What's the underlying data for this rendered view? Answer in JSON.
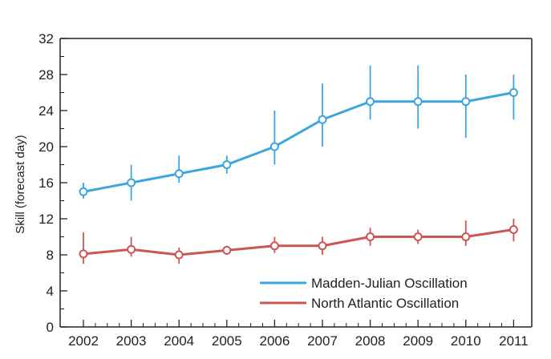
{
  "colors": {
    "mjo": "#3aa6dc",
    "nao": "#cc5555",
    "axis": "#222222",
    "background": "#ffffff"
  },
  "chart_data": {
    "type": "line",
    "title": "",
    "xlabel": "",
    "ylabel": "Skill (forecast day)",
    "x": [
      "2002",
      "2003",
      "2004",
      "2005",
      "2006",
      "2007",
      "2008",
      "2009",
      "2010",
      "2011"
    ],
    "ylim": [
      0,
      32
    ],
    "yticks": [
      0,
      4,
      8,
      12,
      16,
      20,
      24,
      28,
      32
    ],
    "grid": false,
    "legend_position": "bottom-right",
    "marker": "open-circle",
    "error_bars": true,
    "series": [
      {
        "name": "Madden-Julian Oscillation",
        "color": "#3aa6dc",
        "values": [
          15,
          16,
          17,
          18,
          20,
          23,
          25,
          25,
          25,
          26
        ],
        "err_low": [
          14.2,
          14.0,
          16.0,
          17.0,
          18.0,
          20.0,
          23.0,
          22.0,
          21.0,
          23.0
        ],
        "err_high": [
          16.0,
          18.0,
          19.0,
          19.0,
          24.0,
          27.0,
          29.0,
          29.0,
          28.0,
          28.0
        ]
      },
      {
        "name": "North Atlantic Oscillation",
        "color": "#cc5555",
        "values": [
          8.1,
          8.6,
          8.0,
          8.5,
          9.0,
          9.0,
          10.0,
          10.0,
          10.0,
          10.8
        ],
        "err_low": [
          7.0,
          7.8,
          7.0,
          8.0,
          8.2,
          8.0,
          9.0,
          9.2,
          9.0,
          9.5
        ],
        "err_high": [
          10.5,
          10.0,
          8.8,
          9.0,
          10.0,
          10.0,
          11.0,
          10.8,
          11.8,
          12.0
        ]
      }
    ]
  }
}
